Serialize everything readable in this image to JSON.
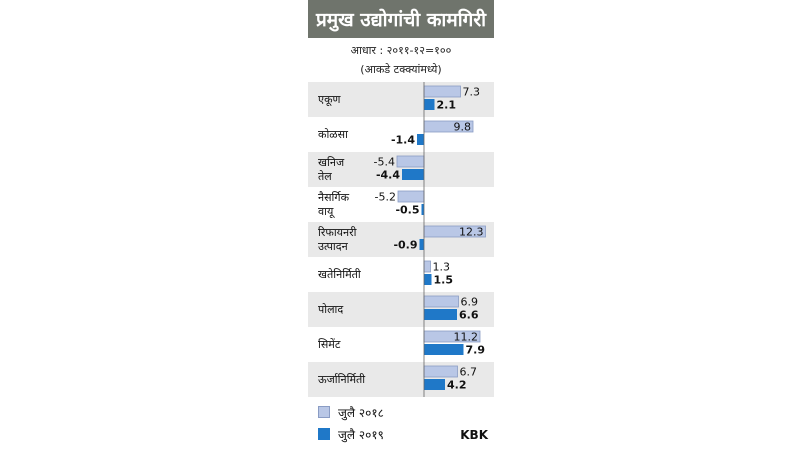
{
  "title": "प्रमुख उद्योगांची कामगिरी",
  "base_note": "आधार : २०११-१२=१००",
  "unit_note": "(आकडे टक्क्यांमध्ये)",
  "brand": "KBK",
  "colors": {
    "title_bg": "#6f746c",
    "row_stripe": "#e9e9e9",
    "series_2018": "#b9c7e6",
    "series_2018_border": "#8a9cc4",
    "series_2019": "#1f78c8"
  },
  "chart_data": {
    "type": "bar",
    "orientation": "horizontal",
    "categories": [
      [
        "एकूण"
      ],
      [
        "कोळसा"
      ],
      [
        "खनिज",
        "तेल"
      ],
      [
        "नैसर्गिक",
        "वायू"
      ],
      [
        "रिफायनरी",
        "उत्पादन"
      ],
      [
        "खतेनिर्मिती"
      ],
      [
        "पोलाद"
      ],
      [
        "सिमेंट"
      ],
      [
        "ऊर्जानिर्मिती"
      ]
    ],
    "series": [
      {
        "name": "जुलै २०१८",
        "values": [
          7.3,
          9.8,
          -5.4,
          -5.2,
          12.3,
          1.3,
          6.9,
          11.2,
          6.7
        ]
      },
      {
        "name": "जुलै २०१९",
        "values": [
          2.1,
          -1.4,
          -4.4,
          -0.5,
          -0.9,
          1.5,
          6.6,
          7.9,
          4.2
        ]
      }
    ],
    "value_labels": [
      [
        "7.3",
        "9.8",
        "-5.4",
        "-5.2",
        "12.3",
        "1.3",
        "6.9",
        "11.2",
        "6.7"
      ],
      [
        "2.1",
        "-1.4",
        "-4.4",
        "-0.5",
        "-0.9",
        "1.5",
        "6.6",
        "7.9",
        "4.2"
      ]
    ],
    "xlim": [
      -5.4,
      12.3
    ],
    "grid": false,
    "legend_position": "bottom-left"
  }
}
